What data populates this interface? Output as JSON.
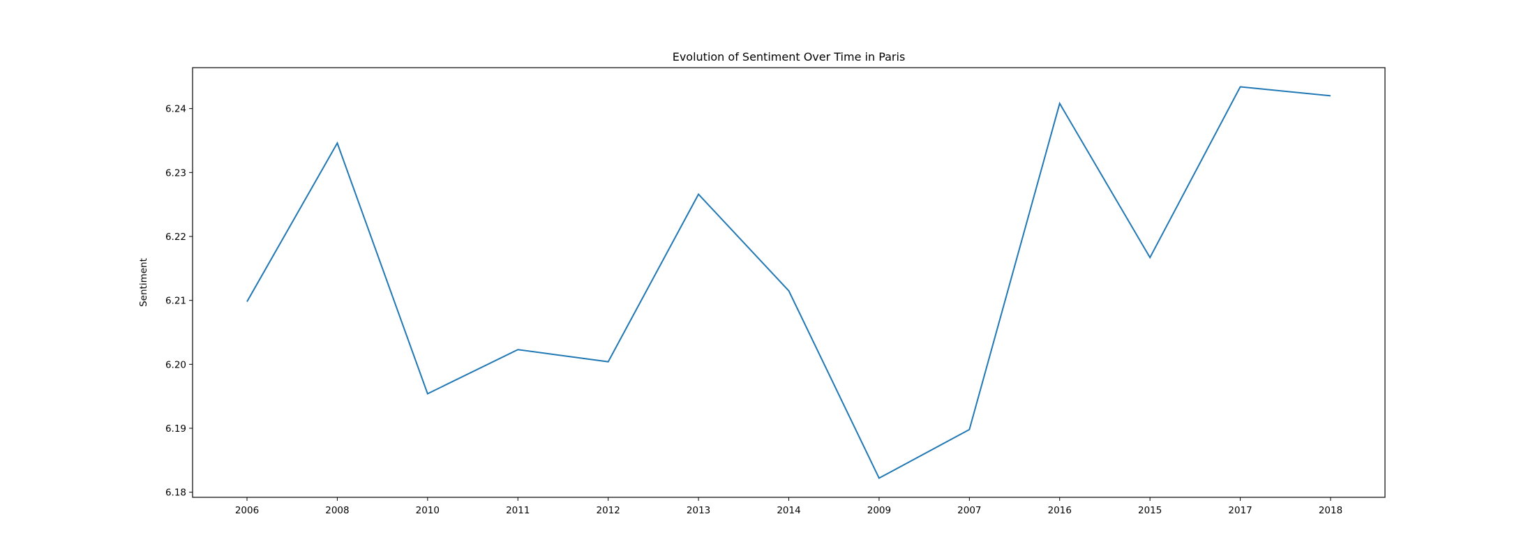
{
  "chart_data": {
    "type": "line",
    "title": "Evolution of Sentiment Over Time in Paris",
    "xlabel": "",
    "ylabel": "Sentiment",
    "categories": [
      "2006",
      "2008",
      "2010",
      "2011",
      "2012",
      "2013",
      "2014",
      "2009",
      "2007",
      "2016",
      "2015",
      "2017",
      "2018"
    ],
    "series": [
      {
        "values": [
          6.2098,
          6.2346,
          6.1954,
          6.2023,
          6.2004,
          6.2266,
          6.2115,
          6.1822,
          6.1898,
          6.2408,
          6.2167,
          6.2434,
          6.242
        ]
      }
    ],
    "ylim": [
      6.1792,
      6.2464
    ],
    "yticks": [
      "6.18",
      "6.19",
      "6.20",
      "6.21",
      "6.22",
      "6.23",
      "6.24"
    ],
    "ytick_values": [
      6.18,
      6.19,
      6.2,
      6.21,
      6.22,
      6.23,
      6.24
    ],
    "grid": false,
    "legend": "none",
    "line_color": "#1f77b4"
  }
}
